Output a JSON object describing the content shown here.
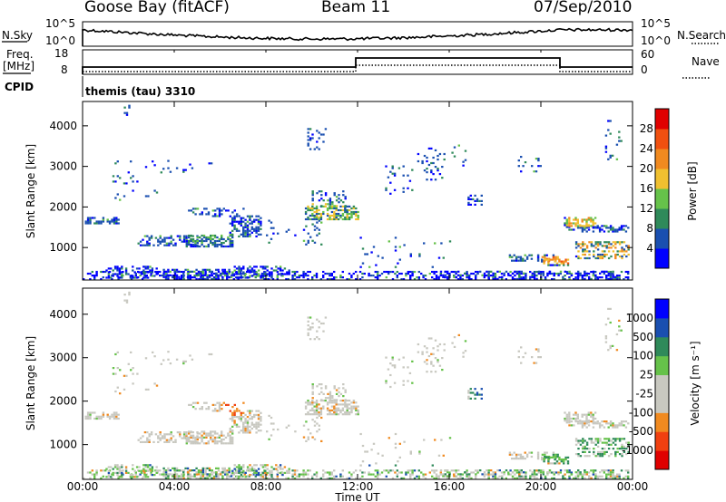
{
  "header": {
    "station": "Goose Bay (fitACF)",
    "beam": "Beam 11",
    "date": "07/Sep/2010"
  },
  "panels": {
    "nsky_label": "N.Sky",
    "nsky_ticks": [
      "10^5",
      "10^0"
    ],
    "nsearch_label": "N.Search",
    "freq_label_top": "Freq.",
    "freq_label_bot": "[MHz]",
    "freq_ticks": [
      "18",
      "8"
    ],
    "nave_ticks": [
      "60",
      "0"
    ],
    "nave_label": "Nave",
    "cpid_label": "CPID",
    "cpid_value": "themis (tau) 3310"
  },
  "colors": {
    "power": [
      "#0000ff",
      "#1a4fb0",
      "#2f8a5a",
      "#66c24a",
      "#f0c030",
      "#f08a20",
      "#f05010",
      "#e00000"
    ],
    "velocity": [
      "#e00000",
      "#f04010",
      "#f08a20",
      "#c8c8c0",
      "#c8c8c0",
      "#66c24a",
      "#2f8a5a",
      "#1a4fb0",
      "#0000ff"
    ],
    "grey": "#c8c8c0"
  },
  "chart_data": [
    {
      "type": "heatmap",
      "title": "",
      "xlabel": "",
      "ylabel": "Slant Range [km]",
      "ylim": [
        200,
        4600
      ],
      "xlim": [
        0,
        24
      ],
      "y_ticks": [
        "1000",
        "2000",
        "3000",
        "4000"
      ],
      "x_ticks": [
        "00:00",
        "04:00",
        "08:00",
        "12:00",
        "16:00",
        "20:00",
        "00:00"
      ],
      "colorbar": {
        "label": "Power [dB]",
        "ticks": [
          "4",
          "8",
          "12",
          "16",
          "20",
          "24",
          "28"
        ]
      }
    },
    {
      "type": "heatmap",
      "title": "",
      "xlabel": "Time UT",
      "ylabel": "Slant Range [km]",
      "ylim": [
        200,
        4600
      ],
      "xlim": [
        0,
        24
      ],
      "y_ticks": [
        "1000",
        "2000",
        "3000",
        "4000"
      ],
      "x_ticks": [
        "00:00",
        "04:00",
        "08:00",
        "12:00",
        "16:00",
        "20:00",
        "00:00"
      ],
      "colorbar": {
        "label": "Velocity [m s⁻¹]",
        "ticks": [
          "1000",
          "500",
          "100",
          "25",
          "-25",
          "-100",
          "-500",
          "-1000"
        ]
      }
    }
  ]
}
